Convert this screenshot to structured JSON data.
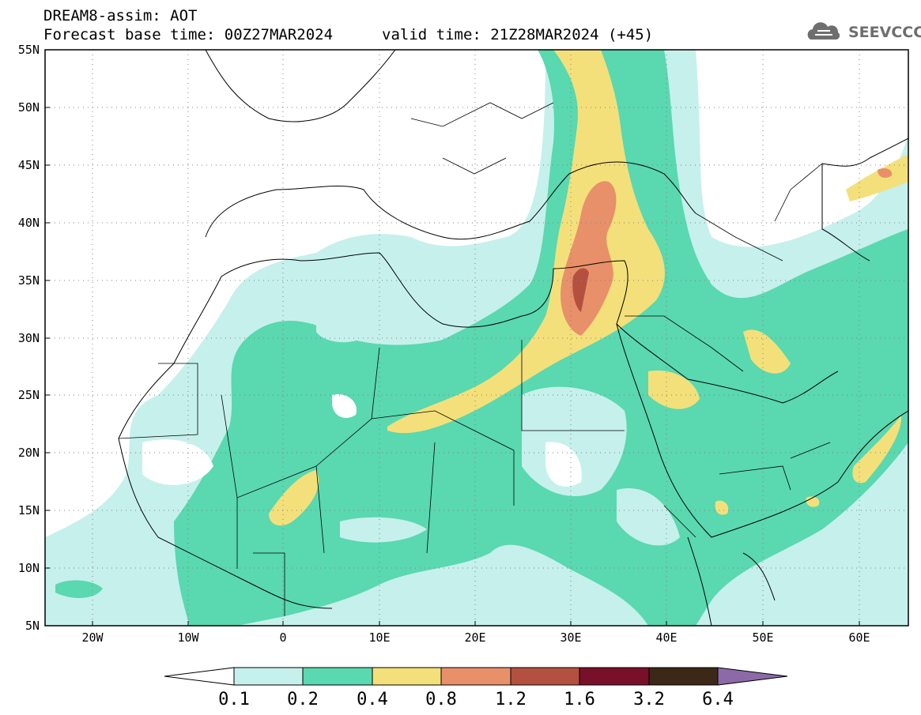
{
  "title": {
    "line1": "DREAM8-assim: AOT",
    "line2": "Forecast base time: 00Z27MAR2024",
    "valid": "valid time: 21Z28MAR2024 (+45)"
  },
  "logo": {
    "text": "SEEVCCC",
    "icon": "cloud-icon"
  },
  "axes": {
    "lon_range": [
      -25,
      65
    ],
    "lat_range": [
      5,
      55
    ],
    "x_ticks": [
      "20W",
      "10W",
      "0",
      "10E",
      "20E",
      "30E",
      "40E",
      "50E",
      "60E"
    ],
    "y_ticks": [
      "55N",
      "50N",
      "45N",
      "40N",
      "35N",
      "30N",
      "25N",
      "20N",
      "15N",
      "10N",
      "5N"
    ],
    "grid": "dotted"
  },
  "colorbar": {
    "levels": [
      "0.1",
      "0.2",
      "0.4",
      "0.8",
      "1.2",
      "1.6",
      "3.2",
      "6.4"
    ],
    "colors": [
      "#ffffff",
      "#c6f0ec",
      "#5ad8b0",
      "#f4e07a",
      "#e8906a",
      "#b45040",
      "#78102a",
      "#3c2816",
      "#8c6aa8"
    ]
  }
}
